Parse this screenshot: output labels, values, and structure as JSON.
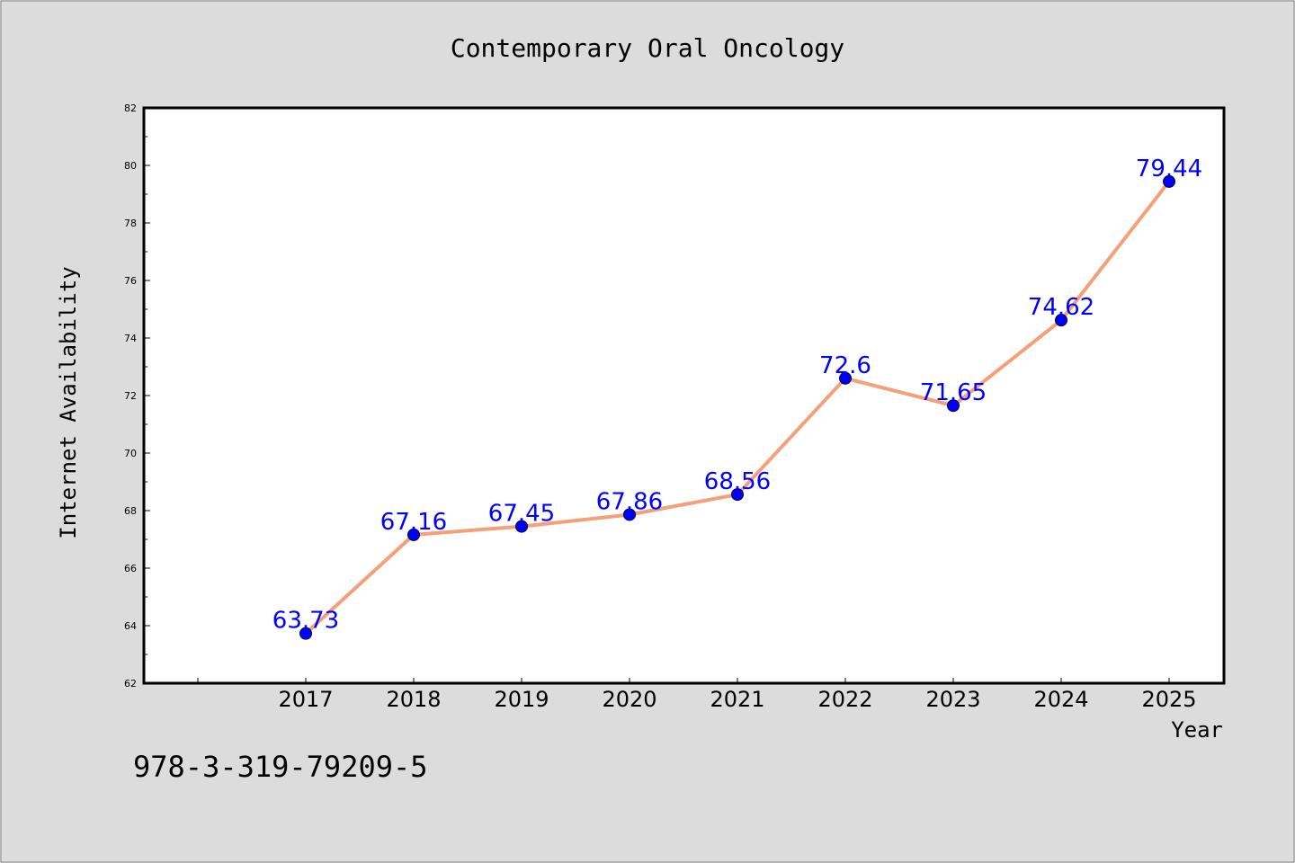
{
  "chart_data": {
    "type": "line",
    "title": "Contemporary Oral Oncology",
    "xlabel": "Year",
    "ylabel": "Internet Availability",
    "categories": [
      "2017",
      "2018",
      "2019",
      "2020",
      "2021",
      "2022",
      "2023",
      "2024",
      "2025"
    ],
    "series": [
      {
        "values": [
          63.73,
          67.16,
          67.45,
          67.86,
          68.56,
          72.6,
          71.65,
          74.62,
          79.44
        ],
        "line_color": "#f4a07a",
        "marker_color": "#0000ff"
      }
    ],
    "data_labels": [
      "63.73",
      "67.16",
      "67.45",
      "67.86",
      "68.56",
      "72.6",
      "71.65",
      "74.62",
      "79.44"
    ],
    "ylim": [
      62,
      82
    ],
    "yticks": [
      62,
      64,
      66,
      68,
      70,
      72,
      74,
      76,
      78,
      80,
      82
    ],
    "grid": false,
    "legend": "none",
    "data_label_color": "#0000ff"
  },
  "footer": {
    "isbn": "978-3-319-79209-5"
  },
  "colors": {
    "background": "#dcdcdc",
    "plot_area": "#ffffff"
  }
}
